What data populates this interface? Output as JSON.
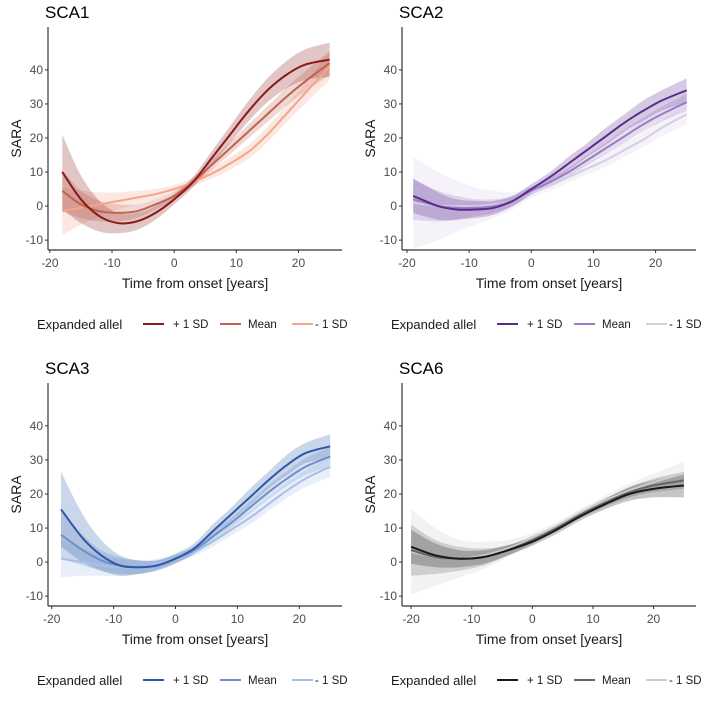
{
  "chart_data": [
    {
      "type": "line",
      "title": "SCA1",
      "xlabel": "Time from onset [years]",
      "ylabel": "SARA",
      "xlim": [
        -20.3,
        27
      ],
      "ylim": [
        -12.9,
        52.6
      ],
      "xticks": [
        -20,
        -10,
        0,
        10,
        20
      ],
      "yticks": [
        -10,
        0,
        10,
        20,
        30,
        40
      ],
      "xtick_labels": [
        "-20",
        "-10",
        "0",
        "10",
        "20"
      ],
      "ytick_labels": [
        "-10",
        "0",
        "10",
        "20",
        "30",
        "40"
      ],
      "legend_title": "Expanded allel",
      "legend_position": "bottom",
      "x": [
        -18,
        -15,
        -12,
        -9,
        -6,
        -3,
        0,
        3,
        6,
        9,
        12,
        15,
        18,
        21,
        25
      ],
      "series": [
        {
          "name": "+ 1 SD",
          "color": "#8B1A1A",
          "values": [
            10,
            2,
            -3,
            -5,
            -4.5,
            -2,
            2,
            7,
            14,
            21,
            28,
            34,
            38.5,
            41.5,
            43
          ],
          "ci": [
            11,
            7,
            4.5,
            3,
            2.5,
            2,
            1.5,
            1.5,
            2,
            2.5,
            3,
            3.5,
            4,
            4.5,
            5
          ]
        },
        {
          "name": "Mean",
          "color": "#C0634E",
          "values": [
            4.5,
            0.5,
            -1.5,
            -2,
            -1.5,
            0.5,
            3,
            7,
            12,
            17,
            22,
            27,
            32,
            36.5,
            42
          ],
          "ci": [
            6,
            4,
            3,
            2.5,
            2,
            1.5,
            1.2,
            1.2,
            1.5,
            1.8,
            2,
            2.3,
            2.6,
            3,
            3.5
          ]
        },
        {
          "name": "- 1 SD",
          "color": "#F4A58A",
          "values": [
            -1.5,
            -0.5,
            0.5,
            1.5,
            2.5,
            3.5,
            5,
            7,
            9.5,
            12.5,
            16,
            21,
            27,
            33,
            41
          ],
          "ci": [
            7,
            5,
            3.5,
            2.5,
            2,
            1.5,
            1.2,
            1.2,
            1.5,
            1.8,
            2,
            2.3,
            2.6,
            3,
            4
          ]
        }
      ]
    },
    {
      "type": "line",
      "title": "SCA2",
      "xlabel": "Time from onset [years]",
      "ylabel": "SARA",
      "xlim": [
        -20.8,
        26.5
      ],
      "ylim": [
        -12.9,
        52.6
      ],
      "xticks": [
        -20,
        -10,
        0,
        10,
        20
      ],
      "yticks": [
        -10,
        0,
        10,
        20,
        30,
        40
      ],
      "xtick_labels": [
        "-20",
        "-10",
        "0",
        "10",
        "20"
      ],
      "ytick_labels": [
        "-10",
        "0",
        "10",
        "20",
        "30",
        "40"
      ],
      "legend_title": "Expanded allel",
      "legend_position": "bottom",
      "x": [
        -19,
        -15,
        -12,
        -9,
        -6,
        -3,
        0,
        3,
        6,
        9,
        12,
        15,
        18,
        21,
        25
      ],
      "series": [
        {
          "name": "+ 1 SD",
          "color": "#5B2A8E",
          "values": [
            3,
            0,
            -1,
            -1,
            -0.5,
            1.5,
            5,
            8.5,
            12.5,
            16.5,
            20.5,
            24.5,
            28,
            31,
            34
          ],
          "ci": [
            5,
            4,
            3,
            2.5,
            2,
            1.5,
            1.5,
            1.5,
            2,
            2,
            2.5,
            2.5,
            3,
            3,
            3.5
          ]
        },
        {
          "name": "Mean",
          "color": "#9A7DC4",
          "values": [
            2,
            0,
            -0.5,
            -0.5,
            0,
            1.5,
            4.5,
            7,
            10,
            13.5,
            17,
            20.5,
            24,
            27,
            30.5
          ],
          "ci": [
            6,
            4.5,
            3.5,
            2.5,
            2,
            1.5,
            1.2,
            1.2,
            1.3,
            1.5,
            1.7,
            2,
            2,
            2.2,
            2.5
          ]
        },
        {
          "name": "- 1 SD",
          "color": "#D6CCE8",
          "values": [
            1,
            0,
            0,
            0,
            0.5,
            1.5,
            4,
            6,
            8.5,
            11,
            13.5,
            16.5,
            19.5,
            23,
            27
          ],
          "ci": [
            13.5,
            10,
            7.5,
            5.5,
            4,
            2.5,
            1.5,
            1.5,
            1.5,
            1.7,
            2,
            2,
            2.2,
            2.5,
            3
          ]
        }
      ]
    },
    {
      "type": "line",
      "title": "SCA3",
      "xlabel": "Time from onset [years]",
      "ylabel": "SARA",
      "xlim": [
        -20.6,
        26.9
      ],
      "ylim": [
        -12.9,
        52.6
      ],
      "xticks": [
        -20,
        -10,
        0,
        10,
        20
      ],
      "yticks": [
        -10,
        0,
        10,
        20,
        30,
        40
      ],
      "xtick_labels": [
        "-20",
        "-10",
        "0",
        "10",
        "20"
      ],
      "ytick_labels": [
        "-10",
        "0",
        "10",
        "20",
        "30",
        "40"
      ],
      "legend_title": "Expanded allel",
      "legend_position": "bottom",
      "x": [
        -18.5,
        -15,
        -12,
        -9,
        -6,
        -3,
        0,
        3,
        6,
        9,
        12,
        15,
        18,
        21,
        25
      ],
      "series": [
        {
          "name": "+ 1 SD",
          "color": "#2D5AA8",
          "values": [
            15.5,
            7,
            2,
            -1,
            -1.5,
            -1,
            1,
            4,
            9,
            14,
            19,
            24,
            28.5,
            32,
            34
          ],
          "ci": [
            11,
            7,
            4.5,
            3,
            2,
            1.5,
            1.5,
            1.5,
            2,
            2,
            2.5,
            2.5,
            3,
            3,
            3.5
          ]
        },
        {
          "name": "Mean",
          "color": "#6F8FCB",
          "values": [
            8,
            3.5,
            0.5,
            -1,
            -1.5,
            -1,
            1,
            3.5,
            7.5,
            11.5,
            16,
            20.5,
            24.5,
            28,
            31
          ],
          "ci": [
            7,
            4.5,
            3,
            2.5,
            2,
            1.5,
            1.2,
            1.2,
            1.5,
            1.5,
            1.8,
            2,
            2.2,
            2.5,
            2.8
          ]
        },
        {
          "name": "- 1 SD",
          "color": "#A9C0E6",
          "values": [
            1,
            0,
            -1,
            -1.5,
            -1.5,
            -0.5,
            1,
            3,
            6,
            9.5,
            13,
            17,
            21,
            24.5,
            28
          ],
          "ci": [
            5.5,
            4,
            3,
            2.5,
            2,
            1.5,
            1.2,
            1.2,
            1.5,
            1.7,
            2,
            2,
            2.2,
            2.5,
            3
          ]
        }
      ]
    },
    {
      "type": "line",
      "title": "SCA6",
      "xlabel": "Time from onset [years]",
      "ylabel": "SARA",
      "xlim": [
        -21.5,
        27
      ],
      "ylim": [
        -12.9,
        52.6
      ],
      "xticks": [
        -20,
        -10,
        0,
        10,
        20
      ],
      "yticks": [
        -10,
        0,
        10,
        20,
        30,
        40
      ],
      "xtick_labels": [
        "-20",
        "-10",
        "0",
        "10",
        "20"
      ],
      "ytick_labels": [
        "-10",
        "0",
        "10",
        "20",
        "30",
        "40"
      ],
      "legend_title": "Expanded allel",
      "legend_position": "bottom",
      "x": [
        -20,
        -16,
        -12,
        -8,
        -4,
        0,
        4,
        8,
        12,
        16,
        20,
        25
      ],
      "series": [
        {
          "name": "+ 1 SD",
          "color": "#1A1A1A",
          "values": [
            4.5,
            2,
            1,
            1.5,
            3.5,
            6,
            9.5,
            13.5,
            17,
            20,
            21.5,
            22.5
          ],
          "ci": [
            5,
            3.5,
            2.5,
            2,
            1.5,
            1.2,
            1.2,
            1.2,
            1.5,
            2,
            2.5,
            3.5
          ]
        },
        {
          "name": "Mean",
          "color": "#666666",
          "values": [
            3.5,
            1.5,
            1,
            1.5,
            3.5,
            6.5,
            10,
            14,
            17.5,
            20.5,
            22.5,
            24
          ],
          "ci": [
            7.5,
            5,
            3.5,
            2.5,
            1.5,
            1.2,
            1,
            1,
            1.2,
            1.5,
            2,
            2.5
          ]
        },
        {
          "name": "- 1 SD",
          "color": "#CCCCCC",
          "values": [
            3,
            1.5,
            1,
            2,
            4,
            7,
            10.5,
            14.5,
            18,
            21,
            23.5,
            26
          ],
          "ci": [
            12.5,
            8.5,
            5.5,
            4,
            2.5,
            1.5,
            1.2,
            1.2,
            1.5,
            2,
            2.5,
            3.5
          ]
        }
      ]
    }
  ]
}
